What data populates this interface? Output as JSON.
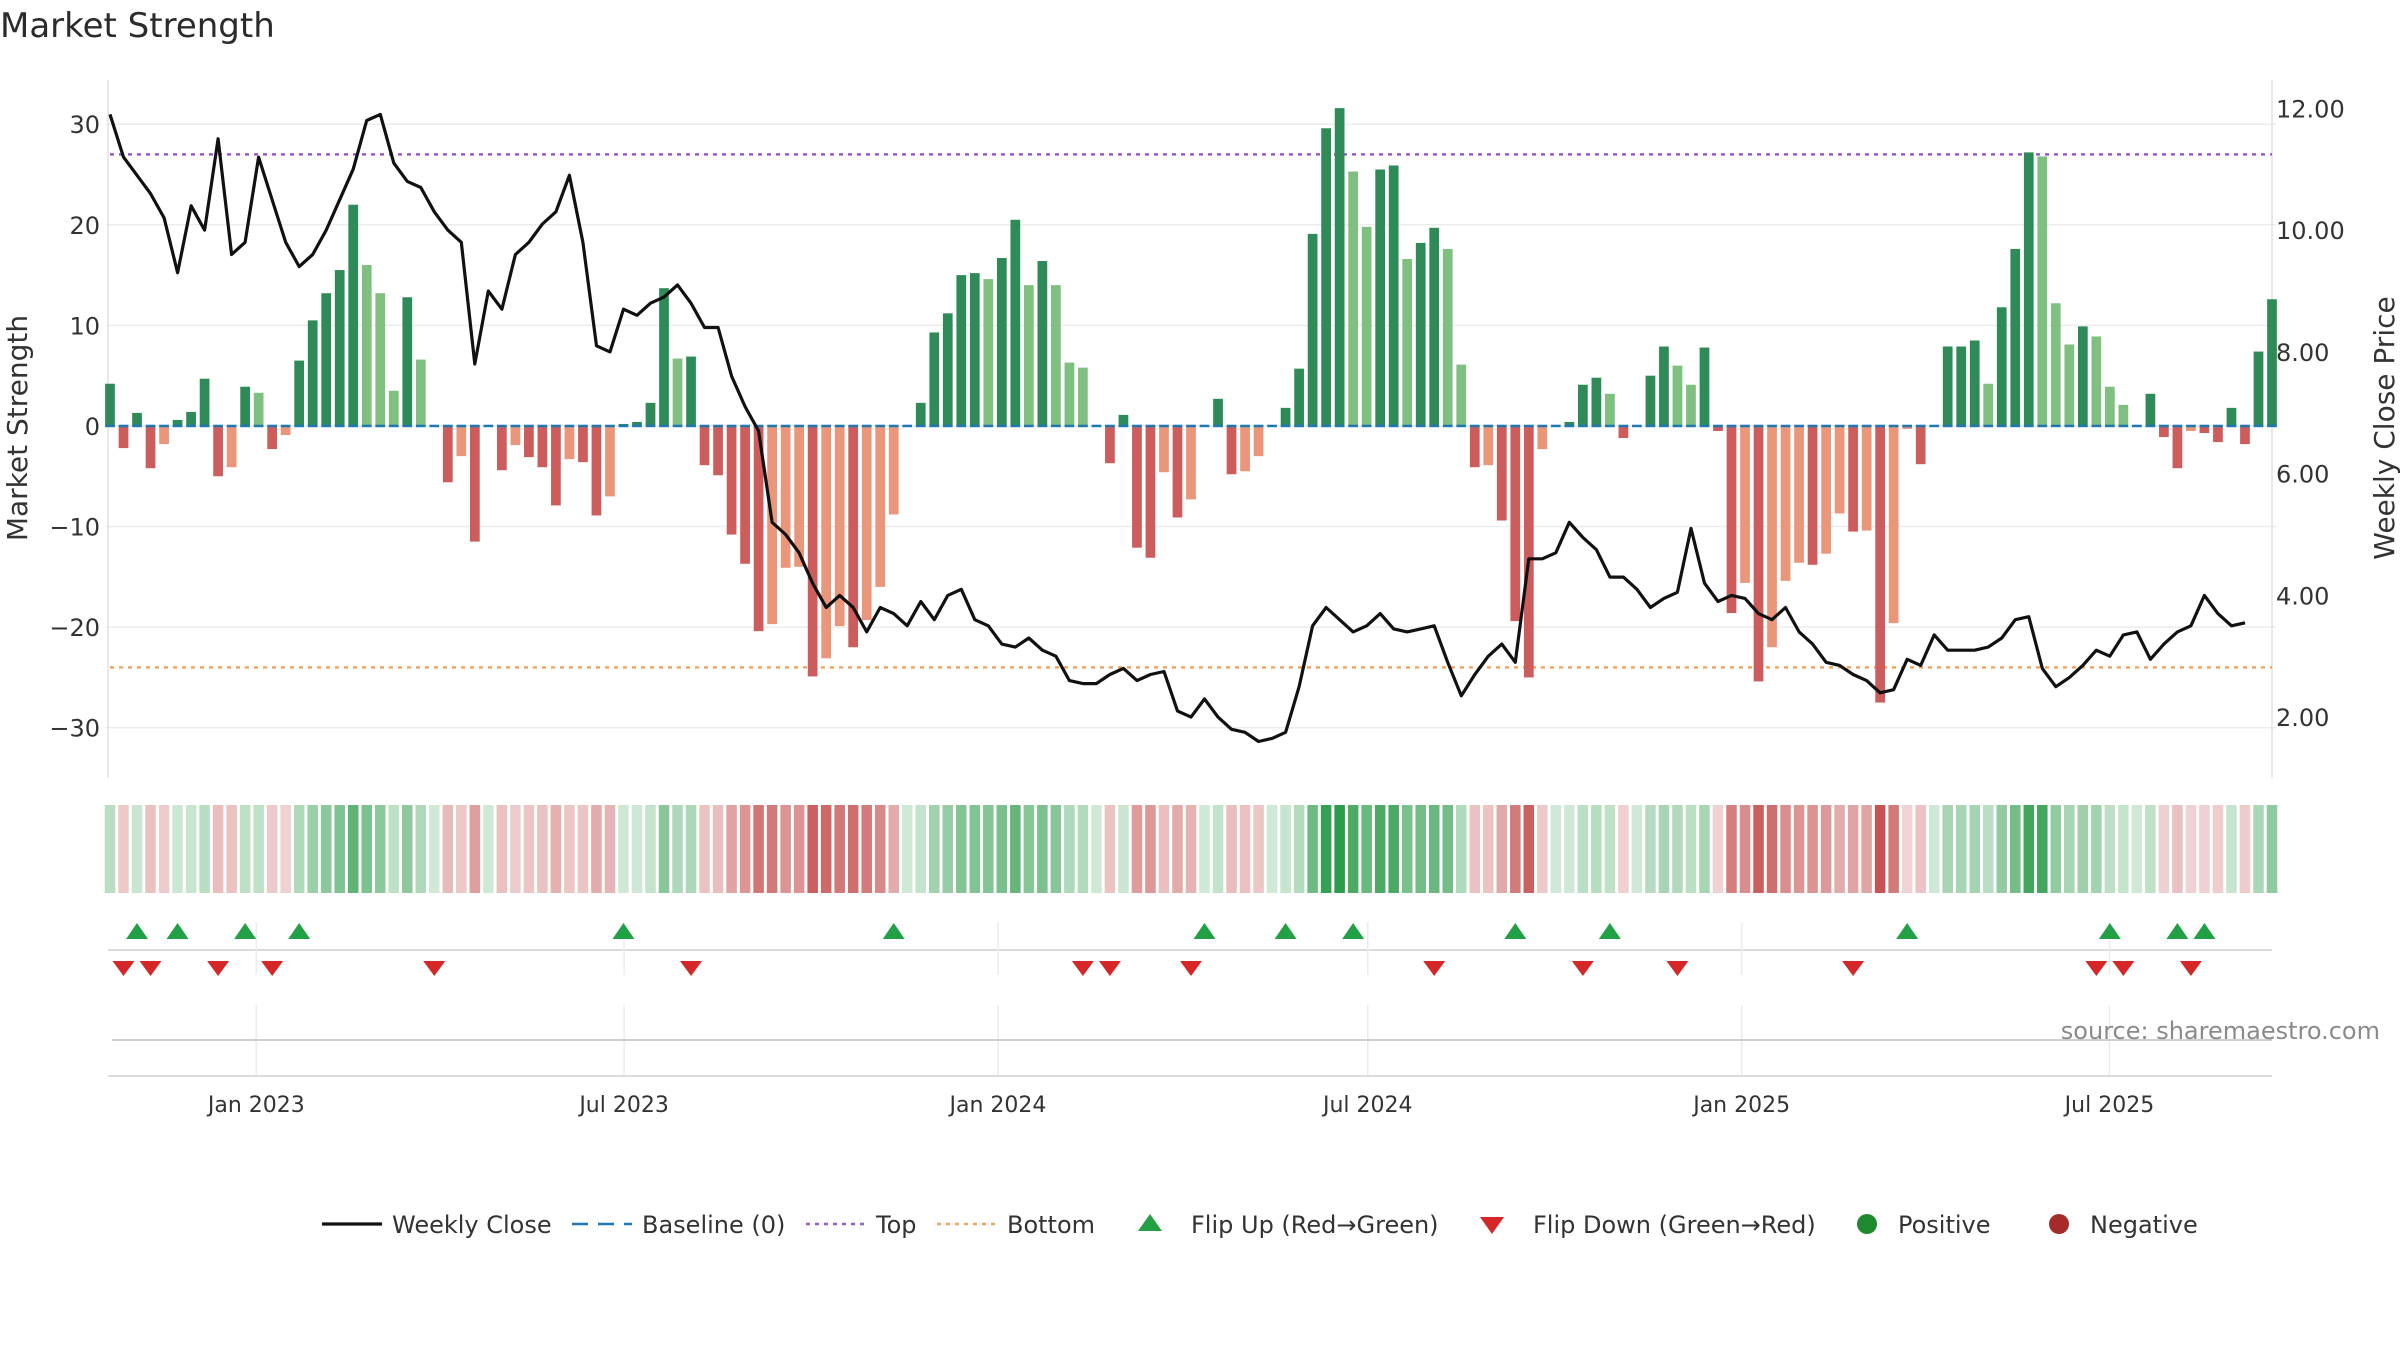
{
  "chart_data": {
    "type": "bar",
    "title": "Market Strength",
    "source": "source: sharemaestro.com",
    "y_left": {
      "label": "Market Strength",
      "ylim": [
        -35,
        34
      ],
      "ticks": [
        30,
        20,
        10,
        0,
        -10,
        -20,
        -30
      ],
      "tick_labels": [
        "30",
        "20",
        "10",
        "0",
        "−10",
        "−20",
        "−30"
      ]
    },
    "y_right": {
      "label": "Weekly Close Price",
      "ylim": [
        1.0,
        12.4
      ],
      "ticks": [
        12,
        10,
        8,
        6,
        4,
        2
      ],
      "tick_labels": [
        "12.00",
        "10.00",
        "8.00",
        "6.00",
        "4.00",
        "2.00"
      ]
    },
    "x_axis": {
      "start_date": "2022-10-21",
      "end_date": "2025-09-19",
      "ticks": [
        "2023-01-01",
        "2023-07-01",
        "2024-01-01",
        "2024-07-01",
        "2025-01-01",
        "2025-07-01"
      ],
      "tick_labels": [
        "Jan 2023",
        "Jul 2023",
        "Jan 2024",
        "Jul 2024",
        "Jan 2025",
        "Jul 2025"
      ]
    },
    "top_line": 27,
    "bottom_line": -24,
    "colors": {
      "pos_strong": "#2e8b57",
      "pos_weak": "#7fbf7f",
      "neg_strong": "#cd5c5c",
      "neg_weak": "#e9967a",
      "close": "#111111",
      "baseline": "#1f77b4",
      "top": "#9b59d0",
      "bottom": "#f4a460",
      "flip_up": "#22a045",
      "flip_down": "#d62728",
      "positive": "#1e8a2e",
      "negative": "#a52a2a"
    },
    "strength": [
      4.2,
      -2.2,
      1.3,
      -4.2,
      -1.8,
      0.6,
      1.4,
      4.7,
      -5,
      -4.1,
      3.9,
      3.3,
      -2.3,
      -0.9,
      6.5,
      10.5,
      13.2,
      15.5,
      22,
      16,
      13.2,
      3.5,
      12.8,
      6.6,
      0,
      -5.6,
      -3,
      -11.5,
      0,
      -4.4,
      -1.9,
      -3.1,
      -4.1,
      -7.9,
      -3.3,
      -3.6,
      -8.9,
      -7,
      0.2,
      0.4,
      2.3,
      13.7,
      6.7,
      6.9,
      -3.9,
      -4.9,
      -10.8,
      -13.7,
      -20.4,
      -19.7,
      -14.1,
      -14,
      -24.9,
      -23.1,
      -19.9,
      -22,
      -19.3,
      -16,
      -8.8,
      0,
      2.3,
      9.3,
      11.2,
      15,
      15.2,
      14.6,
      16.7,
      20.5,
      14,
      16.4,
      14,
      6.3,
      5.8,
      0,
      -3.7,
      1.1,
      -12.1,
      -13.1,
      -4.6,
      -9.1,
      -7.3,
      0,
      2.7,
      -4.8,
      -4.5,
      -3,
      0,
      1.8,
      5.7,
      19.1,
      29.6,
      31.6,
      25.3,
      19.8,
      25.5,
      25.9,
      16.6,
      18.2,
      19.7,
      17.6,
      6.1,
      -4.1,
      -3.9,
      -9.4,
      -19.4,
      -25,
      -2.3,
      0,
      0.4,
      4.1,
      4.8,
      3.2,
      -1.2,
      0,
      5,
      7.9,
      6,
      4.1,
      7.8,
      -0.5,
      -18.6,
      -15.6,
      -25.4,
      -22,
      -15.4,
      -13.6,
      -13.8,
      -12.7,
      -8.7,
      -10.5,
      -10.4,
      -27.5,
      -19.6,
      -0.3,
      -3.8,
      0,
      7.9,
      7.9,
      8.5,
      4.2,
      11.8,
      17.6,
      27.2,
      26.8,
      12.2,
      8.1,
      9.9,
      8.9,
      3.9,
      2.1,
      0,
      3.2,
      -1.1,
      -4.2,
      -0.5,
      -0.7,
      -1.6,
      1.8,
      -1.8,
      7.4,
      12.6
    ],
    "close": [
      11.9,
      11.2,
      10.9,
      10.6,
      10.2,
      9.3,
      10.4,
      10.0,
      11.5,
      9.6,
      9.8,
      11.2,
      10.5,
      9.8,
      9.4,
      9.6,
      10.0,
      10.5,
      11.0,
      11.8,
      11.9,
      11.1,
      10.8,
      10.7,
      10.3,
      10.0,
      9.8,
      7.8,
      9.0,
      8.7,
      9.6,
      9.8,
      10.1,
      10.3,
      10.9,
      9.8,
      8.1,
      8.0,
      8.7,
      8.6,
      8.8,
      8.9,
      9.1,
      8.8,
      8.4,
      8.4,
      7.6,
      7.1,
      6.7,
      5.2,
      5.0,
      4.7,
      4.2,
      3.8,
      4.0,
      3.8,
      3.4,
      3.8,
      3.7,
      3.5,
      3.9,
      3.6,
      4.0,
      4.1,
      3.6,
      3.5,
      3.2,
      3.15,
      3.3,
      3.1,
      3.0,
      2.6,
      2.55,
      2.55,
      2.7,
      2.8,
      2.6,
      2.7,
      2.75,
      2.1,
      2.0,
      2.3,
      2.0,
      1.8,
      1.75,
      1.6,
      1.65,
      1.75,
      2.5,
      3.5,
      3.8,
      3.6,
      3.4,
      3.5,
      3.7,
      3.45,
      3.4,
      3.45,
      3.5,
      2.9,
      2.35,
      2.7,
      3.0,
      3.2,
      2.9,
      4.6,
      4.6,
      4.7,
      5.2,
      4.95,
      4.75,
      4.3,
      4.3,
      4.1,
      3.8,
      3.95,
      4.05,
      5.1,
      4.2,
      3.9,
      4.0,
      3.95,
      3.7,
      3.6,
      3.8,
      3.4,
      3.2,
      2.9,
      2.85,
      2.7,
      2.6,
      2.4,
      2.45,
      2.95,
      2.85,
      3.35,
      3.1,
      3.1,
      3.1,
      3.15,
      3.3,
      3.6,
      3.65,
      2.8,
      2.5,
      2.65,
      2.85,
      3.1,
      3.0,
      3.35,
      3.4,
      2.95,
      3.2,
      3.4,
      3.5,
      4.0,
      3.7,
      3.5,
      3.55
    ],
    "flip_up_index": [
      2,
      5,
      10,
      14,
      38,
      58,
      81,
      87,
      92,
      104,
      111,
      133,
      148,
      153,
      155
    ],
    "flip_down_index": [
      1,
      3,
      8,
      12,
      24,
      43,
      72,
      74,
      80,
      98,
      109,
      116,
      129,
      147,
      149,
      154
    ],
    "legend": [
      {
        "key": "close",
        "label": "Weekly Close",
        "marker": "line"
      },
      {
        "key": "baseline",
        "label": "Baseline (0)",
        "marker": "dash"
      },
      {
        "key": "top",
        "label": "Top",
        "marker": "dot"
      },
      {
        "key": "bottom",
        "label": "Bottom",
        "marker": "dot"
      },
      {
        "key": "flip_up",
        "label": "Flip Up (Red→Green)",
        "marker": "triangle-up"
      },
      {
        "key": "flip_down",
        "label": "Flip Down (Green→Red)",
        "marker": "triangle-down"
      },
      {
        "key": "positive",
        "label": "Positive",
        "marker": "circle"
      },
      {
        "key": "negative",
        "label": "Negative",
        "marker": "circle"
      }
    ]
  }
}
